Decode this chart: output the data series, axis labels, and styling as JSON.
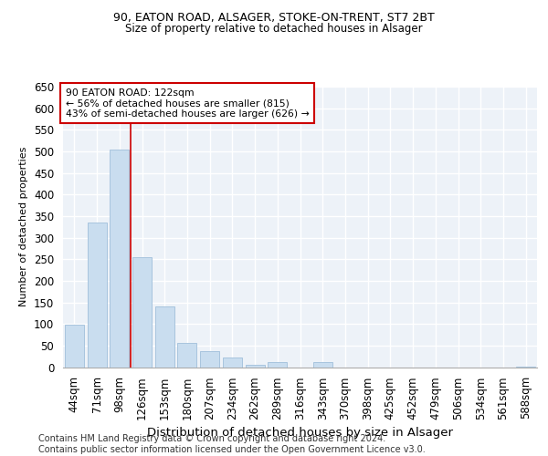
{
  "title1": "90, EATON ROAD, ALSAGER, STOKE-ON-TRENT, ST7 2BT",
  "title2": "Size of property relative to detached houses in Alsager",
  "xlabel": "Distribution of detached houses by size in Alsager",
  "ylabel": "Number of detached properties",
  "categories": [
    "44sqm",
    "71sqm",
    "98sqm",
    "126sqm",
    "153sqm",
    "180sqm",
    "207sqm",
    "234sqm",
    "262sqm",
    "289sqm",
    "316sqm",
    "343sqm",
    "370sqm",
    "398sqm",
    "425sqm",
    "452sqm",
    "479sqm",
    "506sqm",
    "534sqm",
    "561sqm",
    "588sqm"
  ],
  "values": [
    98,
    335,
    505,
    255,
    140,
    55,
    38,
    22,
    5,
    12,
    0,
    12,
    0,
    0,
    0,
    0,
    0,
    0,
    0,
    0,
    2
  ],
  "bar_color": "#c9ddef",
  "bar_edge_color": "#a8c4de",
  "ylim": [
    0,
    650
  ],
  "yticks": [
    0,
    50,
    100,
    150,
    200,
    250,
    300,
    350,
    400,
    450,
    500,
    550,
    600,
    650
  ],
  "vline_x": 2.5,
  "vline_color": "#cc0000",
  "annot_line1": "90 EATON ROAD: 122sqm",
  "annot_line2": "← 56% of detached houses are smaller (815)",
  "annot_line3": "43% of semi-detached houses are larger (626) →",
  "annot_box_color": "#cc0000",
  "footer_line1": "Contains HM Land Registry data © Crown copyright and database right 2024.",
  "footer_line2": "Contains public sector information licensed under the Open Government Licence v3.0.",
  "bg_color": "#edf2f8",
  "grid_color": "#ffffff",
  "title1_fontsize": 9.0,
  "title2_fontsize": 8.5,
  "xlabel_fontsize": 9.5,
  "ylabel_fontsize": 8.0,
  "tick_fontsize": 8.5,
  "xtick_fontsize": 8.5,
  "footer_fontsize": 7.0
}
